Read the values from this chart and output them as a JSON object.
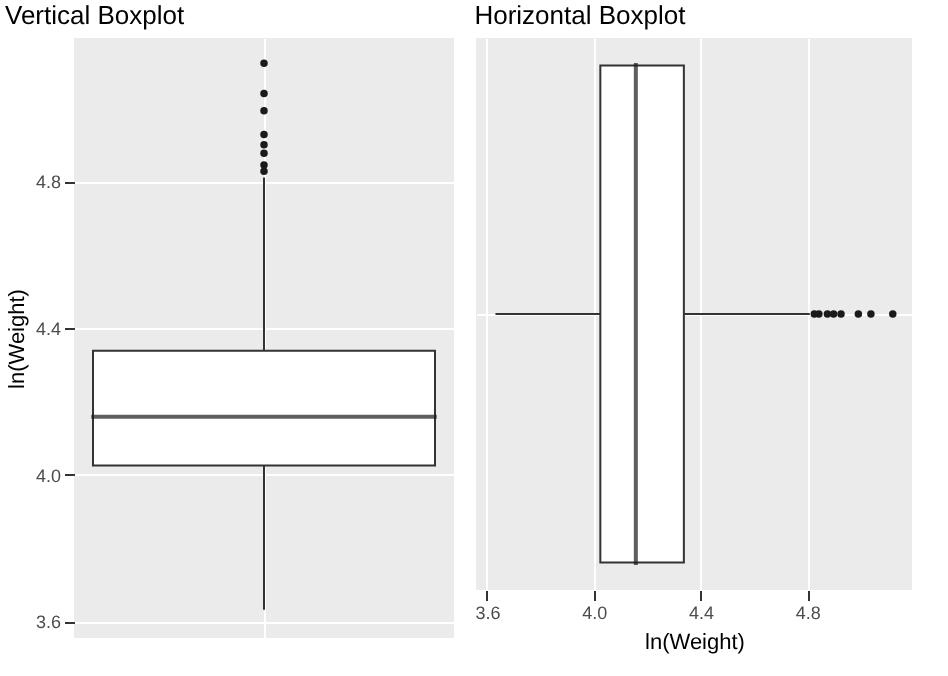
{
  "chart_data": [
    {
      "type": "box",
      "title": "Vertical Boxplot",
      "ylabel": "ln(Weight)",
      "categories": [
        null
      ],
      "boxes": [
        {
          "low": 3.632,
          "q1": 4.025,
          "median": 4.158,
          "q3": 4.338,
          "high": 4.81,
          "outliers": [
            4.827,
            4.844,
            4.876,
            4.899,
            4.927,
            4.992,
            5.039,
            5.121
          ]
        }
      ],
      "ylim": [
        3.555,
        5.19
      ],
      "yticks": [
        3.6,
        {
          "value": 4.0,
          "label": "4.0"
        },
        4.4,
        4.8
      ],
      "grid": true,
      "tick_labels": "y"
    },
    {
      "type": "box",
      "title": "Horizontal Boxplot",
      "xlabel": "ln(Weight)",
      "orientation": "horizontal",
      "categories": [
        null
      ],
      "boxes": [
        {
          "low": 3.632,
          "q1": 4.025,
          "median": 4.158,
          "q3": 4.338,
          "high": 4.81,
          "outliers": [
            4.827,
            4.844,
            4.876,
            4.899,
            4.927,
            4.992,
            5.039,
            5.121
          ]
        }
      ],
      "xlim": [
        3.559,
        5.193
      ],
      "xticks": [
        3.6,
        {
          "value": 4.0,
          "label": "4.0"
        },
        4.4,
        4.8
      ],
      "grid": true,
      "tick_labels": "x"
    }
  ]
}
